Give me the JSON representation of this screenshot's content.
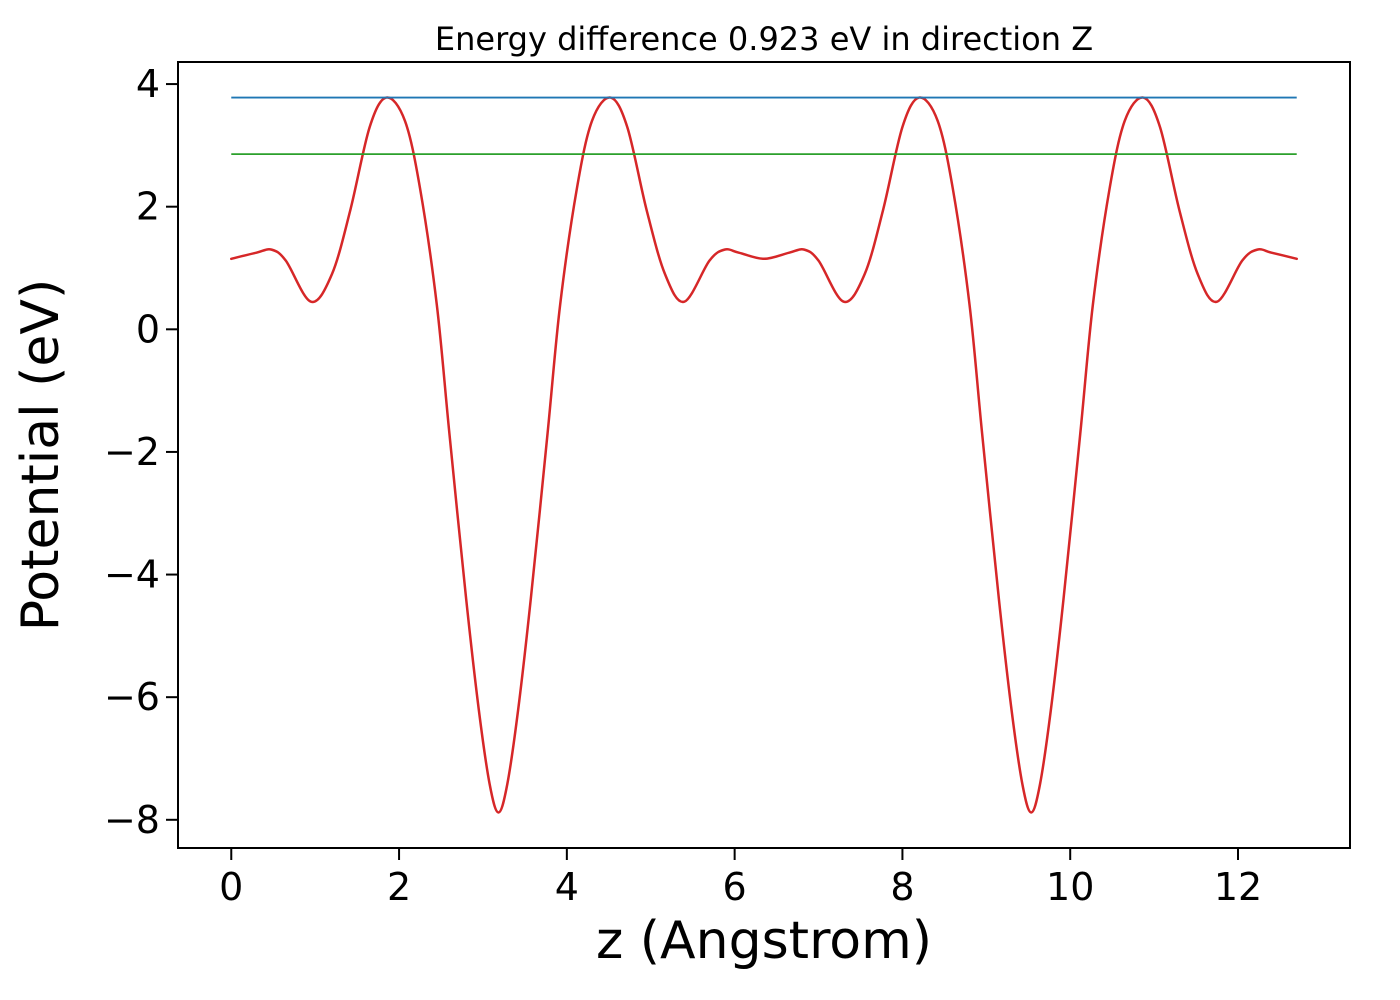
{
  "chart_data": {
    "type": "line",
    "title": "Energy difference 0.923 eV in direction Z",
    "xlabel": "z (Angstrom)",
    "ylabel": "Potential (eV)",
    "xlim": [
      -0.635,
      13.335
    ],
    "ylim": [
      -8.46,
      4.36
    ],
    "xticks": [
      0,
      2,
      4,
      6,
      8,
      10,
      12
    ],
    "yticks": [
      4,
      2,
      0,
      -2,
      -4,
      -6,
      -8
    ],
    "grid": false,
    "legend": "none",
    "background": "#ffffff",
    "energy_difference_eV": 0.923,
    "direction": "Z",
    "series": [
      {
        "name": "planar-averaged-potential",
        "kind": "curve",
        "color": "#d62728",
        "linewidth": 2.5,
        "x": [
          0.0,
          0.3,
          0.48,
          0.65,
          0.95,
          1.2,
          1.42,
          1.65,
          1.85,
          2.07,
          2.25,
          2.45,
          2.6,
          2.8,
          2.95,
          3.08,
          3.185,
          3.29,
          3.42,
          3.57,
          3.77,
          3.92,
          4.12,
          4.3,
          4.52,
          4.72,
          4.95,
          5.17,
          5.4,
          5.7,
          5.88,
          6.05,
          6.35,
          6.65,
          6.83,
          7.0,
          7.3,
          7.55,
          7.77,
          8.0,
          8.2,
          8.42,
          8.6,
          8.8,
          8.95,
          9.15,
          9.3,
          9.43,
          9.535,
          9.64,
          9.77,
          9.92,
          10.12,
          10.27,
          10.47,
          10.65,
          10.87,
          11.07,
          11.3,
          11.52,
          11.75,
          12.05,
          12.23,
          12.4,
          12.7
        ],
        "y": [
          1.15,
          1.25,
          1.3,
          1.12,
          0.45,
          0.9,
          1.95,
          3.3,
          3.78,
          3.4,
          2.3,
          0.4,
          -1.7,
          -4.4,
          -6.2,
          -7.42,
          -7.88,
          -7.42,
          -6.2,
          -4.4,
          -1.7,
          0.4,
          2.3,
          3.4,
          3.78,
          3.3,
          1.95,
          0.9,
          0.45,
          1.12,
          1.3,
          1.25,
          1.15,
          1.25,
          1.3,
          1.12,
          0.45,
          0.9,
          1.95,
          3.3,
          3.78,
          3.4,
          2.3,
          0.4,
          -1.7,
          -4.4,
          -6.2,
          -7.42,
          -7.88,
          -7.42,
          -6.2,
          -4.4,
          -1.7,
          0.4,
          2.3,
          3.4,
          3.78,
          3.3,
          1.95,
          0.9,
          0.45,
          1.12,
          1.3,
          1.25,
          1.15
        ]
      },
      {
        "name": "potential-maximum-level",
        "kind": "hline",
        "color": "#1f77b4",
        "linewidth": 1.8,
        "y": 3.78,
        "x_start": 0,
        "x_end": 12.7
      },
      {
        "name": "reference-energy-level",
        "kind": "hline",
        "color": "#2ca02c",
        "linewidth": 1.8,
        "y": 2.857,
        "x_start": 0,
        "x_end": 12.7
      }
    ]
  }
}
